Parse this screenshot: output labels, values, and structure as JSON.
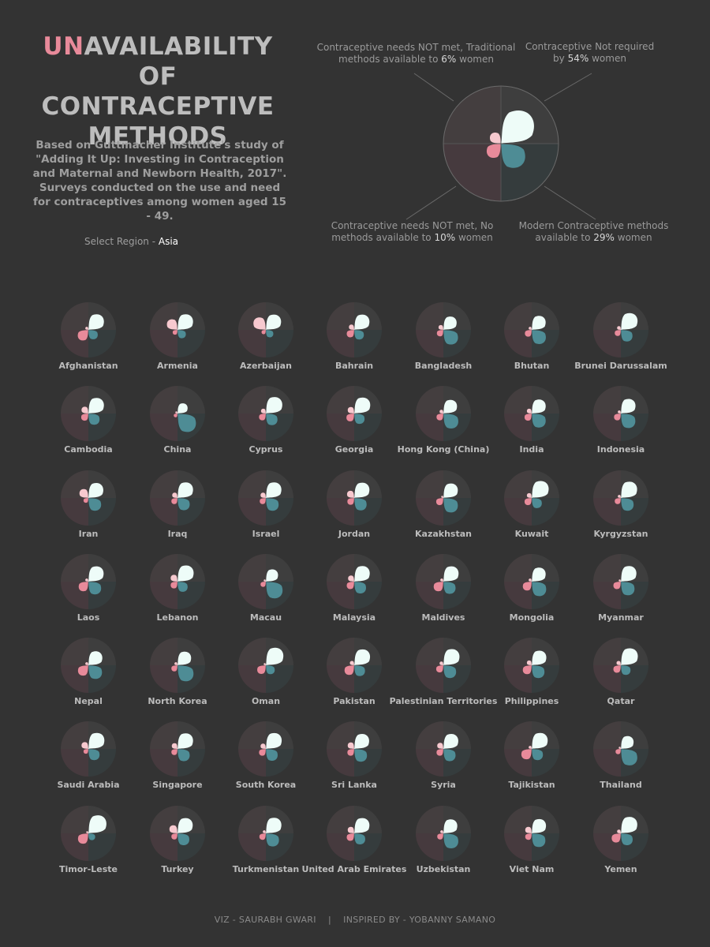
{
  "header": {
    "title_highlight": "UN",
    "title_rest_line1": "AVAILABILITY OF",
    "title_line2": "CONTRACEPTIVE",
    "title_line3": "METHODS",
    "subtitle": "Based on Guttmacher Institute's study of \"Adding It Up: Investing in Contraception and Maternal and Newborn Health, 2017\". Surveys conducted on the use and need for contraceptives among women aged 15 - 49.",
    "region_label": "Select Region -",
    "region_value": "Asia"
  },
  "legend": {
    "top_left": {
      "text": "Contraceptive needs NOT met, Traditional methods available to",
      "value": "6%",
      "suffix": "women"
    },
    "top_right": {
      "text": "Contraceptive Not required by",
      "value": "54%",
      "suffix": "women"
    },
    "bottom_left": {
      "text": "Contraceptive needs NOT met, No methods available to",
      "value": "10%",
      "suffix": "women"
    },
    "bottom_right": {
      "text": "Modern Contraceptive methods available to",
      "value": "29%",
      "suffix": "women"
    }
  },
  "colors": {
    "background": "#333333",
    "not_required": "#eefcf8",
    "modern": "#4e8c95",
    "no_methods": "#e88a9a",
    "traditional": "#f7c9cf",
    "quad_tl": "#443e3f",
    "quad_tr": "#3e3e3e",
    "quad_bl": "#463a3e",
    "quad_br": "#353c3d"
  },
  "chart_data": {
    "type": "petal",
    "unit": "% of women aged 15-49",
    "series_order": [
      "traditional",
      "not_required",
      "no_methods",
      "modern"
    ],
    "legend_values": {
      "traditional": 6,
      "not_required": 54,
      "no_methods": 10,
      "modern": 29
    },
    "countries": [
      {
        "name": "Afghanistan",
        "not_required": 52,
        "modern": 19,
        "no_methods": 24,
        "traditional": 2
      },
      {
        "name": "Armenia",
        "not_required": 52,
        "modern": 15,
        "no_methods": 5,
        "traditional": 24
      },
      {
        "name": "Azerbaijan",
        "not_required": 50,
        "modern": 12,
        "no_methods": 4,
        "traditional": 33
      },
      {
        "name": "Bahrain",
        "not_required": 50,
        "modern": 20,
        "no_methods": 12,
        "traditional": 6
      },
      {
        "name": "Bangladesh",
        "not_required": 38,
        "modern": 46,
        "no_methods": 9,
        "traditional": 5
      },
      {
        "name": "Bhutan",
        "not_required": 42,
        "modern": 43,
        "no_methods": 10,
        "traditional": 2
      },
      {
        "name": "Brunei Darussalam",
        "not_required": 60,
        "modern": 29,
        "no_methods": 8,
        "traditional": 3
      },
      {
        "name": "Cambodia",
        "not_required": 52,
        "modern": 27,
        "no_methods": 11,
        "traditional": 10
      },
      {
        "name": "China",
        "not_required": 22,
        "modern": 73,
        "no_methods": 3,
        "traditional": 1
      },
      {
        "name": "Cyprus",
        "not_required": 58,
        "modern": 29,
        "no_methods": 10,
        "traditional": 5
      },
      {
        "name": "Georgia",
        "not_required": 55,
        "modern": 23,
        "no_methods": 13,
        "traditional": 9
      },
      {
        "name": "Hong Kong (China)",
        "not_required": 40,
        "modern": 48,
        "no_methods": 10,
        "traditional": 3
      },
      {
        "name": "India",
        "not_required": 42,
        "modern": 42,
        "no_methods": 11,
        "traditional": 5
      },
      {
        "name": "Indonesia",
        "not_required": 46,
        "modern": 45,
        "no_methods": 10,
        "traditional": 2
      },
      {
        "name": "Iran",
        "not_required": 48,
        "modern": 35,
        "no_methods": 5,
        "traditional": 17
      },
      {
        "name": "Iraq",
        "not_required": 52,
        "modern": 32,
        "no_methods": 8,
        "traditional": 6
      },
      {
        "name": "Israel",
        "not_required": 52,
        "modern": 35,
        "no_methods": 8,
        "traditional": 6
      },
      {
        "name": "Jordan",
        "not_required": 50,
        "modern": 33,
        "no_methods": 10,
        "traditional": 11
      },
      {
        "name": "Kazakhstan",
        "not_required": 45,
        "modern": 45,
        "no_methods": 11,
        "traditional": 1
      },
      {
        "name": "Kuwait",
        "not_required": 62,
        "modern": 22,
        "no_methods": 11,
        "traditional": 5
      },
      {
        "name": "Kyrgyzstan",
        "not_required": 57,
        "modern": 35,
        "no_methods": 8,
        "traditional": 2
      },
      {
        "name": "Laos",
        "not_required": 50,
        "modern": 35,
        "no_methods": 20,
        "traditional": 2
      },
      {
        "name": "Lebanon",
        "not_required": 56,
        "modern": 22,
        "no_methods": 10,
        "traditional": 10
      },
      {
        "name": "Macau",
        "not_required": 32,
        "modern": 60,
        "no_methods": 6,
        "traditional": 1
      },
      {
        "name": "Malaysia",
        "not_required": 52,
        "modern": 30,
        "no_methods": 12,
        "traditional": 8
      },
      {
        "name": "Maldives",
        "not_required": 50,
        "modern": 32,
        "no_methods": 20,
        "traditional": 2
      },
      {
        "name": "Mongolia",
        "not_required": 42,
        "modern": 45,
        "no_methods": 17,
        "traditional": 2
      },
      {
        "name": "Myanmar",
        "not_required": 52,
        "modern": 40,
        "no_methods": 12,
        "traditional": 1
      },
      {
        "name": "Nepal",
        "not_required": 42,
        "modern": 40,
        "no_methods": 23,
        "traditional": 2
      },
      {
        "name": "North Korea",
        "not_required": 40,
        "modern": 55,
        "no_methods": 8,
        "traditional": 2
      },
      {
        "name": "Oman",
        "not_required": 66,
        "modern": 17,
        "no_methods": 16,
        "traditional": 1
      },
      {
        "name": "Pakistan",
        "not_required": 54,
        "modern": 25,
        "no_methods": 20,
        "traditional": 4
      },
      {
        "name": "Palestinian Territories",
        "not_required": 56,
        "modern": 35,
        "no_methods": 11,
        "traditional": 3
      },
      {
        "name": "Philippines",
        "not_required": 46,
        "modern": 35,
        "no_methods": 17,
        "traditional": 5
      },
      {
        "name": "Qatar",
        "not_required": 62,
        "modern": 20,
        "no_methods": 12,
        "traditional": 4
      },
      {
        "name": "Saudi Arabia",
        "not_required": 55,
        "modern": 27,
        "no_methods": 5,
        "traditional": 10
      },
      {
        "name": "Singapore",
        "not_required": 52,
        "modern": 32,
        "no_methods": 8,
        "traditional": 7
      },
      {
        "name": "South Korea",
        "not_required": 54,
        "modern": 30,
        "no_methods": 10,
        "traditional": 6
      },
      {
        "name": "Sri Lanka",
        "not_required": 48,
        "modern": 35,
        "no_methods": 10,
        "traditional": 9
      },
      {
        "name": "Syria",
        "not_required": 48,
        "modern": 32,
        "no_methods": 10,
        "traditional": 8
      },
      {
        "name": "Tajikistan",
        "not_required": 55,
        "modern": 27,
        "no_methods": 23,
        "traditional": 2
      },
      {
        "name": "Thailand",
        "not_required": 35,
        "modern": 58,
        "no_methods": 6,
        "traditional": 1
      },
      {
        "name": "Timor-Leste",
        "not_required": 70,
        "modern": 10,
        "no_methods": 23,
        "traditional": 1
      },
      {
        "name": "Turkey",
        "not_required": 50,
        "modern": 30,
        "no_methods": 8,
        "traditional": 14
      },
      {
        "name": "Turkmenistan",
        "not_required": 52,
        "modern": 37,
        "no_methods": 9,
        "traditional": 2
      },
      {
        "name": "United Arab Emirates",
        "not_required": 50,
        "modern": 26,
        "no_methods": 12,
        "traditional": 9
      },
      {
        "name": "Uzbekistan",
        "not_required": 42,
        "modern": 48,
        "no_methods": 8,
        "traditional": 2
      },
      {
        "name": "Viet Nam",
        "not_required": 44,
        "modern": 40,
        "no_methods": 9,
        "traditional": 9
      },
      {
        "name": "Yemen",
        "not_required": 58,
        "modern": 30,
        "no_methods": 18,
        "traditional": 3
      }
    ]
  },
  "footer": {
    "credit": "VIZ - SAURABH GWARI",
    "separator": "|",
    "inspired": "INSPIRED BY - YOBANNY SAMANO"
  }
}
